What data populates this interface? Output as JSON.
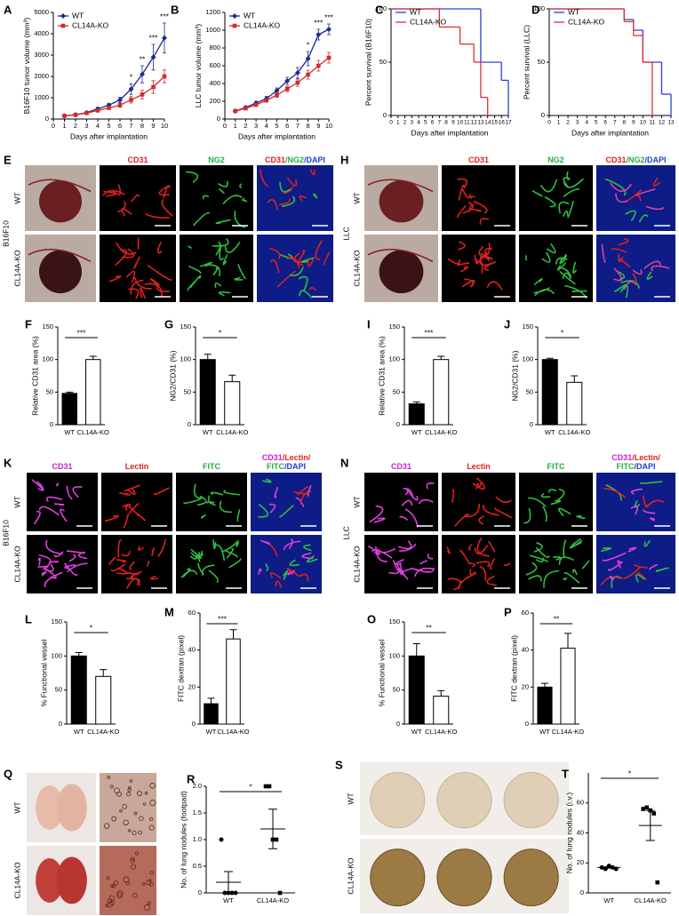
{
  "chart_data": [
    {
      "type": "line",
      "panel": "A",
      "ylabel": "B16F10 tumor volume (mm³)",
      "xlabel": "Days after implantation",
      "x": [
        1,
        2,
        3,
        4,
        5,
        6,
        7,
        8,
        9,
        10
      ],
      "xlim": [
        0,
        10
      ],
      "xticks": [
        0,
        1,
        2,
        3,
        4,
        5,
        6,
        7,
        8,
        9,
        10
      ],
      "ylim": [
        0,
        5000
      ],
      "yticks": [
        0,
        1000,
        2000,
        3000,
        4000,
        5000
      ],
      "legend": "upper left",
      "series": [
        {
          "name": "WT",
          "color": "#1c2a8c",
          "marker": "diamond",
          "values": [
            150,
            200,
            300,
            480,
            650,
            900,
            1400,
            2100,
            2900,
            3800
          ],
          "errors": [
            30,
            30,
            40,
            60,
            80,
            120,
            250,
            400,
            600,
            700
          ]
        },
        {
          "name": "CL14A-KO",
          "color": "#d42a2a",
          "marker": "square",
          "values": [
            150,
            200,
            280,
            400,
            520,
            650,
            900,
            1150,
            1500,
            2000
          ],
          "errors": [
            20,
            30,
            40,
            50,
            70,
            90,
            150,
            200,
            300,
            300
          ]
        }
      ],
      "annotations": [
        {
          "x": 7,
          "text": "*"
        },
        {
          "x": 8,
          "text": "**"
        },
        {
          "x": 9,
          "text": "***"
        },
        {
          "x": 10,
          "text": "***"
        }
      ]
    },
    {
      "type": "line",
      "panel": "B",
      "ylabel": "LLC tumor volume (mm³)",
      "xlabel": "Days after implantation",
      "x": [
        1,
        2,
        3,
        4,
        5,
        6,
        7,
        8,
        9,
        10
      ],
      "xlim": [
        0,
        10
      ],
      "xticks": [
        0,
        1,
        2,
        3,
        4,
        5,
        6,
        7,
        8,
        9,
        10
      ],
      "ylim": [
        0,
        1200
      ],
      "yticks": [
        0,
        200,
        400,
        600,
        800,
        1000,
        1200
      ],
      "legend": "upper left",
      "series": [
        {
          "name": "WT",
          "color": "#1c2a8c",
          "marker": "diamond",
          "values": [
            90,
            130,
            180,
            230,
            320,
            430,
            520,
            680,
            950,
            1010
          ],
          "errors": [
            10,
            15,
            20,
            25,
            30,
            40,
            60,
            80,
            60,
            60
          ]
        },
        {
          "name": "CL14A-KO",
          "color": "#d42a2a",
          "marker": "square",
          "values": [
            90,
            120,
            160,
            210,
            270,
            340,
            410,
            500,
            600,
            690
          ],
          "errors": [
            10,
            10,
            15,
            20,
            25,
            30,
            40,
            50,
            60,
            60
          ]
        }
      ],
      "annotations": [
        {
          "x": 8,
          "text": "*"
        },
        {
          "x": 9,
          "text": "***"
        },
        {
          "x": 10,
          "text": "***"
        }
      ]
    },
    {
      "type": "survival",
      "panel": "C",
      "ylabel": "Percent survival (B16F10)",
      "xlabel": "Days after implantation",
      "xlim": [
        0,
        17
      ],
      "xticks": [
        0,
        1,
        2,
        3,
        4,
        5,
        6,
        7,
        8,
        9,
        10,
        11,
        12,
        13,
        14,
        15,
        16,
        17
      ],
      "ylim": [
        0,
        100
      ],
      "yticks": [
        0,
        50,
        100
      ],
      "legend": "upper left",
      "series": [
        {
          "name": "WT",
          "color": "#2a40d8",
          "x": [
            0,
            13,
            16,
            17
          ],
          "values": [
            100,
            50,
            33,
            0
          ]
        },
        {
          "name": "CL14A-KO",
          "color": "#e03030",
          "x": [
            0,
            7,
            10,
            12,
            13,
            14
          ],
          "values": [
            100,
            83,
            67,
            50,
            17,
            0
          ]
        }
      ]
    },
    {
      "type": "survival",
      "panel": "D",
      "ylabel": "Percent survival (LLC)",
      "xlabel": "Days after implantation",
      "xlim": [
        0,
        13
      ],
      "xticks": [
        0,
        1,
        2,
        3,
        4,
        5,
        6,
        7,
        8,
        9,
        10,
        11,
        12,
        13
      ],
      "ylim": [
        0,
        100
      ],
      "yticks": [
        0,
        50,
        100
      ],
      "legend": "upper left",
      "series": [
        {
          "name": "WT",
          "color": "#2a40d8",
          "x": [
            0,
            8,
            9,
            10,
            12,
            13
          ],
          "values": [
            100,
            90,
            80,
            50,
            20,
            0
          ]
        },
        {
          "name": "CL14A-KO",
          "color": "#e03030",
          "x": [
            0,
            8,
            9,
            10,
            11
          ],
          "values": [
            100,
            88,
            75,
            50,
            0
          ]
        }
      ]
    },
    {
      "type": "bar",
      "panel": "F",
      "ylabel": "Relative CD31 area (%)",
      "categories": [
        "WT",
        "CL14A-KO"
      ],
      "values": [
        48,
        100
      ],
      "errors": [
        2,
        5
      ],
      "colors": [
        "#000000",
        "#ffffff"
      ],
      "ylim": [
        0,
        150
      ],
      "yticks": [
        0,
        50,
        100,
        150
      ],
      "significance": "***"
    },
    {
      "type": "bar",
      "panel": "G",
      "ylabel": "NG2/CD31 (%)",
      "categories": [
        "WT",
        "CL14A-KO"
      ],
      "values": [
        100,
        66
      ],
      "errors": [
        8,
        10
      ],
      "colors": [
        "#000000",
        "#ffffff"
      ],
      "ylim": [
        0,
        150
      ],
      "yticks": [
        0,
        50,
        100,
        150
      ],
      "significance": "*"
    },
    {
      "type": "bar",
      "panel": "I",
      "ylabel": "Relative CD31 area (%)",
      "categories": [
        "WT",
        "CL14A-KO"
      ],
      "values": [
        32,
        100
      ],
      "errors": [
        3,
        5
      ],
      "colors": [
        "#000000",
        "#ffffff"
      ],
      "ylim": [
        0,
        150
      ],
      "yticks": [
        0,
        50,
        100,
        150
      ],
      "significance": "***"
    },
    {
      "type": "bar",
      "panel": "J",
      "ylabel": "NG2/CD31 (%)",
      "categories": [
        "WT",
        "CL14A-KO"
      ],
      "values": [
        100,
        65
      ],
      "errors": [
        2,
        10
      ],
      "colors": [
        "#000000",
        "#ffffff"
      ],
      "ylim": [
        0,
        150
      ],
      "yticks": [
        0,
        50,
        100,
        150
      ],
      "significance": "*"
    },
    {
      "type": "bar",
      "panel": "L",
      "ylabel": "% Functional vessel",
      "categories": [
        "WT",
        "CL14A-KO"
      ],
      "values": [
        100,
        70
      ],
      "errors": [
        5,
        10
      ],
      "colors": [
        "#000000",
        "#ffffff"
      ],
      "ylim": [
        0,
        150
      ],
      "yticks": [
        0,
        50,
        100,
        150
      ],
      "significance": "*"
    },
    {
      "type": "bar",
      "panel": "M",
      "ylabel": "FITC dextran (pixel)",
      "categories": [
        "WT",
        "CL14A-KO"
      ],
      "values": [
        11,
        46
      ],
      "errors": [
        3,
        5
      ],
      "colors": [
        "#000000",
        "#ffffff"
      ],
      "ylim": [
        0,
        60
      ],
      "yticks": [
        0,
        20,
        40,
        60
      ],
      "significance": "***"
    },
    {
      "type": "bar",
      "panel": "O",
      "ylabel": "% Functional vessel",
      "categories": [
        "WT",
        "CL14A-KO"
      ],
      "values": [
        100,
        41
      ],
      "errors": [
        18,
        8
      ],
      "colors": [
        "#000000",
        "#ffffff"
      ],
      "ylim": [
        0,
        150
      ],
      "yticks": [
        0,
        50,
        100,
        150
      ],
      "significance": "**"
    },
    {
      "type": "bar",
      "panel": "P",
      "ylabel": "FITC dextran (pixel)",
      "categories": [
        "WT",
        "CL14A-KO"
      ],
      "values": [
        20,
        41
      ],
      "errors": [
        2,
        8
      ],
      "colors": [
        "#000000",
        "#ffffff"
      ],
      "ylim": [
        0,
        60
      ],
      "yticks": [
        0,
        20,
        40,
        60
      ],
      "significance": "**"
    },
    {
      "type": "dot",
      "panel": "R",
      "ylabel": "No. of lung nodules (footpad)",
      "categories": [
        "WT",
        "CL14A-KO"
      ],
      "points": [
        [
          1,
          0,
          0,
          0,
          0
        ],
        [
          2,
          2,
          1,
          1,
          0
        ]
      ],
      "means": [
        0.2,
        1.2
      ],
      "errors": [
        0.2,
        0.37
      ],
      "markers": [
        "circle",
        "square"
      ],
      "ylim": [
        0,
        2
      ],
      "yticks": [
        0,
        0.5,
        {
          "value": 1,
          "label": "1.0"
        },
        1.5,
        {
          "value": 2,
          "label": "2.0"
        }
      ],
      "significance": "*"
    },
    {
      "type": "dot",
      "panel": "T",
      "ylabel": "No. of lung nodules (i.v.)",
      "categories": [
        "WT",
        "CL14A-KO"
      ],
      "points": [
        [
          17,
          16,
          18,
          17,
          16
        ],
        [
          56,
          57,
          55,
          53,
          7
        ]
      ],
      "means": [
        17,
        45
      ],
      "errors": [
        0.5,
        10
      ],
      "markers": [
        "circle",
        "square"
      ],
      "ylim": [
        0,
        80
      ],
      "yticks": [
        0,
        20,
        40,
        60
      ],
      "significance": "*"
    }
  ],
  "figures": [
    {
      "panel": "E",
      "side_label": "B16F10",
      "row_labels": [
        "WT",
        "CL14A-KO"
      ],
      "headers": [
        [
          [
            {
              "text": "CD31",
              "color": "#e02020"
            }
          ]
        ],
        [
          [
            {
              "text": "NG2",
              "color": "#20b040"
            }
          ]
        ],
        [
          [
            {
              "text": "CD31",
              "color": "#e02020"
            },
            {
              "text": "/NG2",
              "color": "#20b040"
            },
            {
              "text": "/DAPI",
              "color": "#2040d0"
            }
          ]
        ]
      ]
    },
    {
      "panel": "H",
      "side_label": "LLC",
      "row_labels": [
        "WT",
        "CL14A-KO"
      ],
      "headers": [
        [
          [
            {
              "text": "CD31",
              "color": "#e02020"
            }
          ]
        ],
        [
          [
            {
              "text": "NG2",
              "color": "#20b040"
            }
          ]
        ],
        [
          [
            {
              "text": "CD31",
              "color": "#e02020"
            },
            {
              "text": "/NG2",
              "color": "#20b040"
            },
            {
              "text": "/DAPI",
              "color": "#2040d0"
            }
          ]
        ]
      ]
    },
    {
      "panel": "K",
      "side_label": "B16F10",
      "row_labels": [
        "WT",
        "CL14A-KO"
      ],
      "headers": [
        [
          [
            {
              "text": "CD31",
              "color": "#d020d0"
            }
          ]
        ],
        [
          [
            {
              "text": "Lectin",
              "color": "#e02020"
            }
          ]
        ],
        [
          [
            {
              "text": "FITC",
              "color": "#20b040"
            }
          ]
        ],
        [
          [
            {
              "text": "CD31",
              "color": "#d020d0"
            },
            {
              "text": "/Lectin/",
              "color": "#e02020"
            }
          ],
          [
            {
              "text": "FITC",
              "color": "#20b040"
            },
            {
              "text": "/DAPI",
              "color": "#2040d0"
            }
          ]
        ]
      ]
    },
    {
      "panel": "N",
      "side_label": "LLC",
      "row_labels": [
        "WT",
        "CL14A-KO"
      ],
      "headers": [
        [
          [
            {
              "text": "CD31",
              "color": "#d020d0"
            }
          ]
        ],
        [
          [
            {
              "text": "Lectin",
              "color": "#e02020"
            }
          ]
        ],
        [
          [
            {
              "text": "FITC",
              "color": "#20b040"
            }
          ]
        ],
        [
          [
            {
              "text": "CD31",
              "color": "#d020d0"
            },
            {
              "text": "/Lectin/",
              "color": "#e02020"
            }
          ],
          [
            {
              "text": "FITC",
              "color": "#20b040"
            },
            {
              "text": "/DAPI",
              "color": "#2040d0"
            }
          ]
        ]
      ]
    },
    {
      "panel": "Q",
      "row_labels": [
        "WT",
        "CL14A-KO"
      ],
      "headers": []
    },
    {
      "panel": "S",
      "row_labels": [
        "WT",
        "CL14A-KO"
      ],
      "headers": []
    }
  ]
}
